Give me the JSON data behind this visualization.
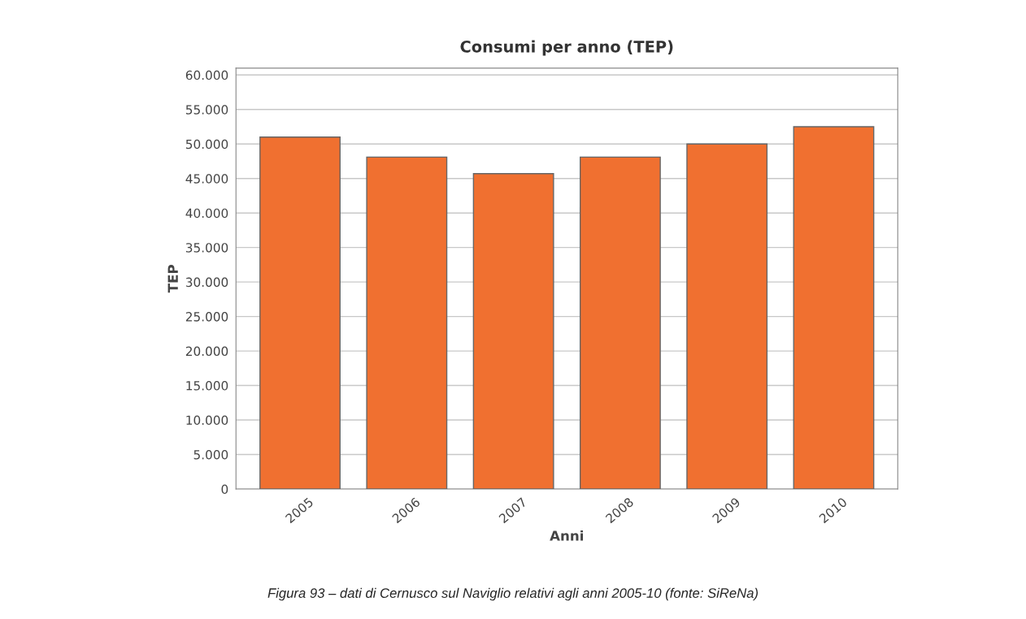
{
  "chart_data": {
    "type": "bar",
    "title": "Consumi per anno (TEP)",
    "xlabel": "Anni",
    "ylabel": "TEP",
    "categories": [
      "2005",
      "2006",
      "2007",
      "2008",
      "2009",
      "2010"
    ],
    "values": [
      51000,
      48100,
      45700,
      48100,
      50000,
      52500
    ],
    "color": "#f07030",
    "ylim": [
      0,
      61000
    ],
    "yticks": [
      {
        "value": 0,
        "label": "0"
      },
      {
        "value": 5000,
        "label": "5.000"
      },
      {
        "value": 10000,
        "label": "10.000"
      },
      {
        "value": 15000,
        "label": "15.000"
      },
      {
        "value": 20000,
        "label": "20.000"
      },
      {
        "value": 25000,
        "label": "25.000"
      },
      {
        "value": 30000,
        "label": "30.000"
      },
      {
        "value": 35000,
        "label": "35.000"
      },
      {
        "value": 40000,
        "label": "40.000"
      },
      {
        "value": 45000,
        "label": "45.000"
      },
      {
        "value": 50000,
        "label": "50.000"
      },
      {
        "value": 55000,
        "label": "55.000"
      },
      {
        "value": 60000,
        "label": "60.000"
      }
    ],
    "grid": "y",
    "legend": false,
    "annotations": [
      "Figura 93 – dati di Cernusco sul Naviglio relativi agli anni 2005-10 (fonte: SiReNa)"
    ]
  }
}
